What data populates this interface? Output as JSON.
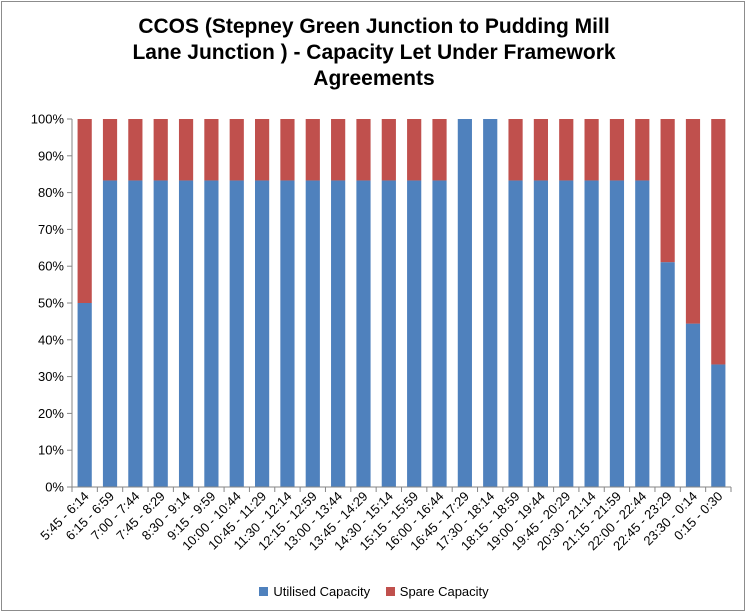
{
  "chart_data": {
    "type": "bar",
    "stacked": true,
    "title_lines": [
      "CCOS (Stepney Green Junction to Pudding Mill",
      "Lane Junction ) - Capacity Let Under Framework",
      "Agreements"
    ],
    "categories": [
      "5:45 - 6:14",
      "6:15 - 6:59",
      "7:00 - 7:44",
      "7:45 - 8:29",
      "8:30 - 9:14",
      "9:15 - 9:59",
      "10:00 - 10:44",
      "10:45 - 11:29",
      "11:30 - 12:14",
      "12:15 - 12:59",
      "13:00 - 13:44",
      "13:45 - 14:29",
      "14:30 - 15:14",
      "15:15 - 15:59",
      "16:00 - 16:44",
      "16:45 - 17:29",
      "17:30 - 18:14",
      "18:15 - 18:59",
      "19:00 - 19:44",
      "19:45 - 20:29",
      "20:30 - 21:14",
      "21:15 - 21:59",
      "22:00 - 22:44",
      "22:45 - 23:29",
      "23:30 - 0:14",
      "0:15 - 0:30"
    ],
    "series": [
      {
        "name": "Utilised Capacity",
        "color": "#4f81bd",
        "values": [
          50,
          83.3,
          83.3,
          83.3,
          83.3,
          83.3,
          83.3,
          83.3,
          83.3,
          83.3,
          83.3,
          83.3,
          83.3,
          83.3,
          83.3,
          100,
          100,
          83.3,
          83.3,
          83.3,
          83.3,
          83.3,
          83.3,
          61.1,
          44.4,
          33.3
        ]
      },
      {
        "name": "Spare Capacity",
        "color": "#c0504d",
        "values": [
          50,
          16.7,
          16.7,
          16.7,
          16.7,
          16.7,
          16.7,
          16.7,
          16.7,
          16.7,
          16.7,
          16.7,
          16.7,
          16.7,
          16.7,
          0,
          0,
          16.7,
          16.7,
          16.7,
          16.7,
          16.7,
          16.7,
          38.9,
          55.6,
          66.7
        ]
      }
    ],
    "y_ticks": [
      "0%",
      "10%",
      "20%",
      "30%",
      "40%",
      "50%",
      "60%",
      "70%",
      "80%",
      "90%",
      "100%"
    ],
    "ylim": [
      0,
      100
    ],
    "grid": false,
    "legend_position": "bottom"
  }
}
